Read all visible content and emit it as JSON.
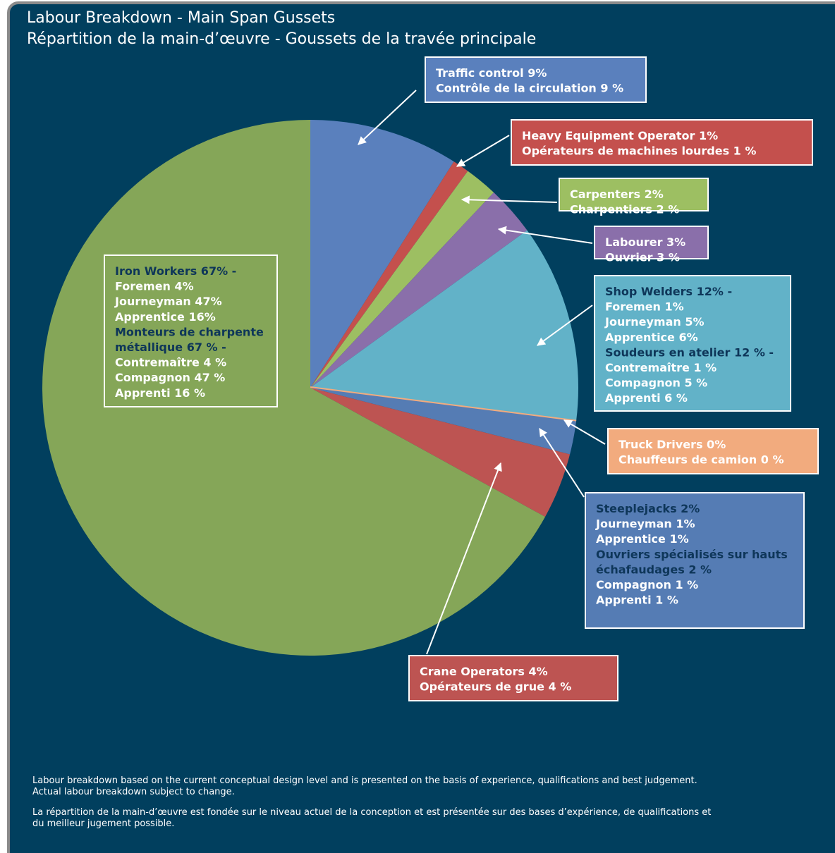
{
  "title_lines": [
    "Labour Breakdown - Main Span Gussets",
    "Répartition de la main-d’œuvre -  Goussets de la travée principale"
  ],
  "chart_data": {
    "type": "pie",
    "slices": [
      {
        "lines": [
          "Traffic control 9%",
          "Contrôle de la circulation 9 %"
        ],
        "value": 9,
        "color": "#5a80bd"
      },
      {
        "lines": [
          "Heavy Equipment Operator 1%",
          "Opérateurs de  machines lourdes 1 %"
        ],
        "value": 1,
        "color": "#c4504d"
      },
      {
        "lines": [
          "Carpenters  2%",
          "Charpentiers 2 %"
        ],
        "value": 2,
        "color": "#9dbf62"
      },
      {
        "lines": [
          "Labourer 3%",
          "Ouvrier 3 %"
        ],
        "value": 3,
        "color": "#8a6faa"
      },
      {
        "lines": [
          "Shop Welders 12% -",
          "Foremen 1%",
          "Journeyman 5%",
          "Apprentice 6%",
          "Soudeurs en atelier 12 % -",
          "Contremaître  1 %",
          "Compagnon 5 %",
          "Apprenti 6 %"
        ],
        "value": 12,
        "color": "#62b2c8",
        "dark_lines": [
          0,
          4
        ]
      },
      {
        "lines": [
          "Truck Drivers 0%",
          "Chauffeurs de camion 0 %"
        ],
        "value": 0,
        "color": "#f2ab7e"
      },
      {
        "lines": [
          "Steeplejacks 2%",
          "Journeyman 1%",
          "Apprentice 1%",
          "Ouvriers spécialisés sur hauts",
          "échafaudages 2 %",
          "Compagnon 1 %",
          "Apprenti 1 %"
        ],
        "value": 2,
        "color": "#557cb4",
        "dark_lines": [
          0,
          3,
          4
        ]
      },
      {
        "lines": [
          "Crane Operators 4%",
          "Opérateurs de grue 4 %"
        ],
        "value": 4,
        "color": "#bd5452"
      },
      {
        "lines": [
          "Iron Workers 67% -",
          "Foremen 4%",
          "Journeyman 47%",
          "Apprentice 16%",
          "Monteurs de charpente",
          "métallique 67 % -",
          "Contremaître 4 %",
          "Compagnon 47 %",
          "Apprenti 16 %"
        ],
        "value": 67,
        "color": "#85a658",
        "dark_lines": [
          0,
          4,
          5
        ]
      }
    ]
  },
  "footnotes": [
    [
      "Labour breakdown based on the current conceptual design level and is presented on the basis of experience, qualifications and best judgement.",
      "Actual labour breakdown subject to change."
    ],
    [
      "La répartition de la main-d’œuvre est fondée sur le niveau actuel de la conception et est présentée sur des bases d’expérience, de qualifications et",
      "du meilleur jugement possible."
    ]
  ]
}
